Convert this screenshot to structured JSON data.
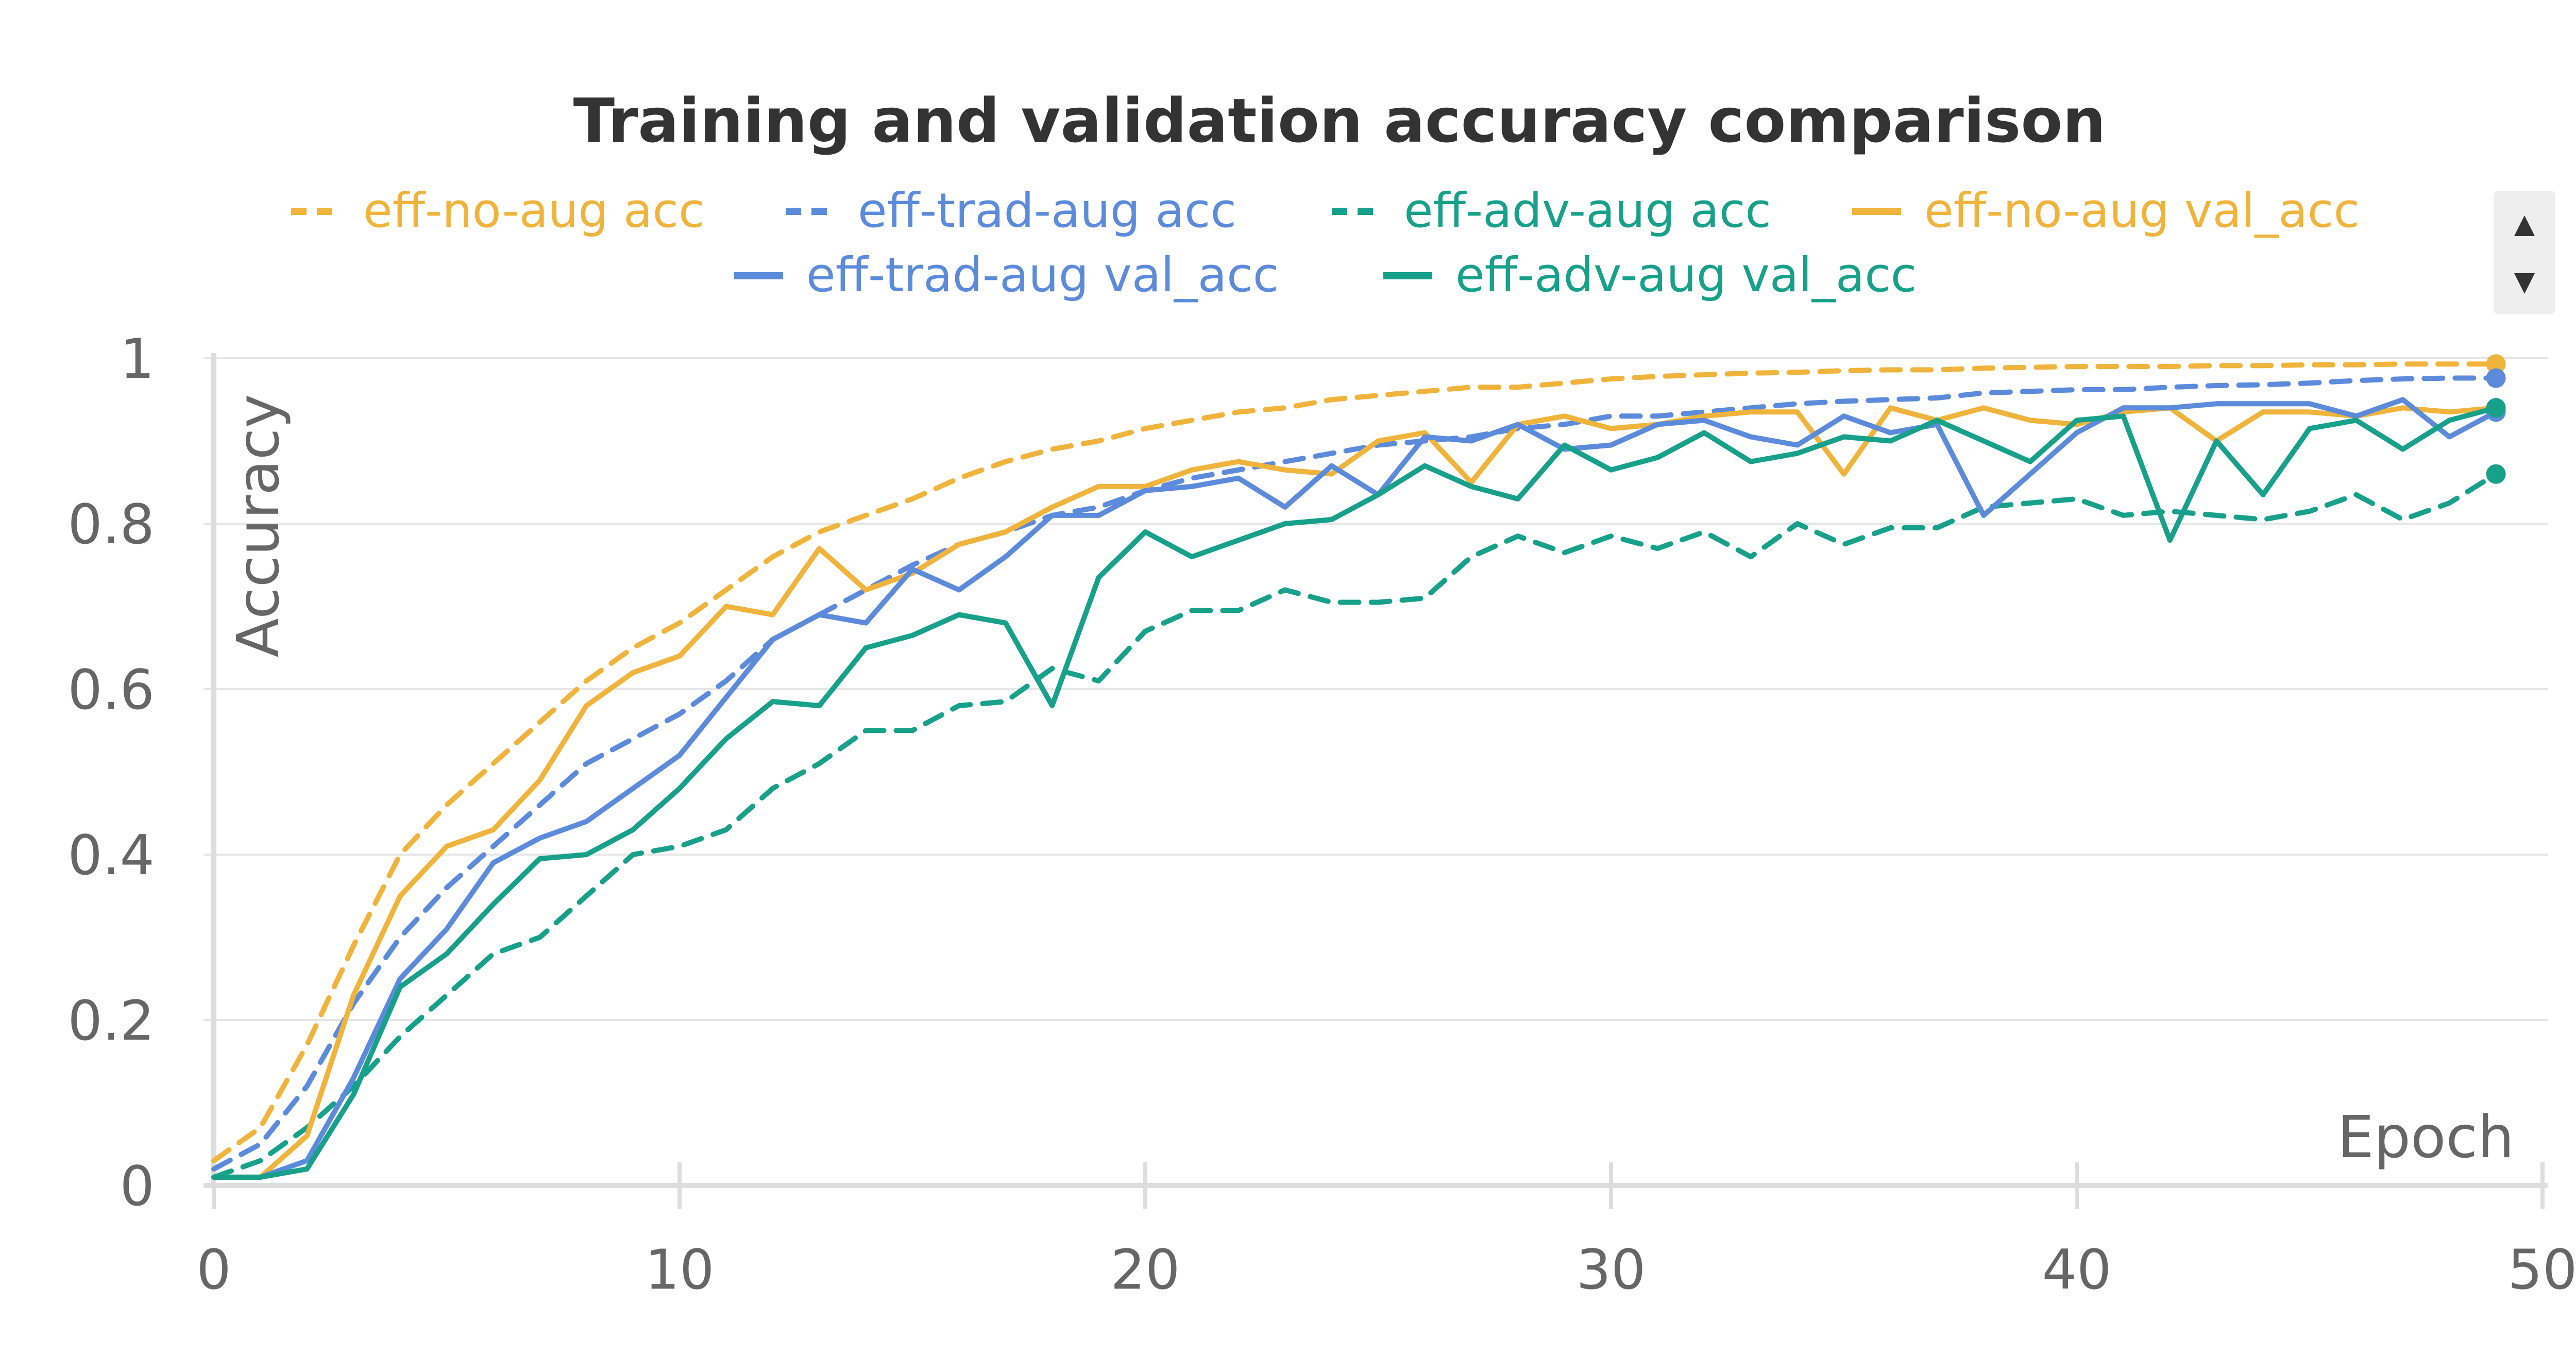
{
  "chart_data": {
    "type": "line",
    "title": "Training and validation accuracy comparison",
    "xlabel": "Epoch",
    "ylabel": "Accuracy",
    "xlim": [
      0,
      50
    ],
    "ylim": [
      0,
      1
    ],
    "x_ticks": [
      "0",
      "10",
      "20",
      "30",
      "40",
      "50"
    ],
    "y_ticks": [
      "0",
      "0.2",
      "0.4",
      "0.6",
      "0.8",
      "1"
    ],
    "grid": true,
    "legend_position": "top",
    "x": [
      0,
      1,
      2,
      3,
      4,
      5,
      6,
      7,
      8,
      9,
      10,
      11,
      12,
      13,
      14,
      15,
      16,
      17,
      18,
      19,
      20,
      21,
      22,
      23,
      24,
      25,
      26,
      27,
      28,
      29,
      30,
      31,
      32,
      33,
      34,
      35,
      36,
      37,
      38,
      39,
      40,
      41,
      42,
      43,
      44,
      45,
      46,
      47,
      48,
      49
    ],
    "series": [
      {
        "name": "eff-no-aug acc",
        "color": "#F0B43C",
        "dash": true,
        "values": [
          0.03,
          0.07,
          0.17,
          0.29,
          0.4,
          0.46,
          0.51,
          0.56,
          0.61,
          0.65,
          0.68,
          0.72,
          0.76,
          0.79,
          0.81,
          0.83,
          0.855,
          0.875,
          0.89,
          0.9,
          0.915,
          0.925,
          0.935,
          0.94,
          0.95,
          0.955,
          0.96,
          0.965,
          0.965,
          0.97,
          0.975,
          0.978,
          0.98,
          0.982,
          0.983,
          0.985,
          0.986,
          0.986,
          0.988,
          0.989,
          0.99,
          0.99,
          0.99,
          0.991,
          0.991,
          0.992,
          0.992,
          0.993,
          0.993,
          0.993
        ]
      },
      {
        "name": "eff-trad-aug acc",
        "color": "#5B8BDA",
        "dash": true,
        "values": [
          0.02,
          0.05,
          0.12,
          0.22,
          0.3,
          0.36,
          0.41,
          0.46,
          0.51,
          0.54,
          0.57,
          0.61,
          0.66,
          0.69,
          0.72,
          0.75,
          0.775,
          0.79,
          0.81,
          0.82,
          0.84,
          0.855,
          0.865,
          0.875,
          0.885,
          0.895,
          0.9,
          0.905,
          0.915,
          0.92,
          0.93,
          0.93,
          0.935,
          0.94,
          0.945,
          0.948,
          0.95,
          0.952,
          0.958,
          0.96,
          0.962,
          0.962,
          0.965,
          0.967,
          0.968,
          0.97,
          0.973,
          0.975,
          0.976,
          0.976
        ]
      },
      {
        "name": "eff-adv-aug acc",
        "color": "#17A08A",
        "dash": true,
        "values": [
          0.01,
          0.03,
          0.07,
          0.12,
          0.18,
          0.23,
          0.28,
          0.3,
          0.35,
          0.4,
          0.41,
          0.43,
          0.48,
          0.51,
          0.55,
          0.55,
          0.58,
          0.585,
          0.625,
          0.61,
          0.67,
          0.695,
          0.695,
          0.72,
          0.705,
          0.705,
          0.71,
          0.76,
          0.785,
          0.765,
          0.785,
          0.77,
          0.79,
          0.76,
          0.8,
          0.775,
          0.795,
          0.795,
          0.82,
          0.825,
          0.83,
          0.81,
          0.815,
          0.81,
          0.805,
          0.815,
          0.835,
          0.805,
          0.825,
          0.86
        ]
      },
      {
        "name": "eff-no-aug val_acc",
        "color": "#F0B43C",
        "dash": false,
        "values": [
          0.01,
          0.01,
          0.06,
          0.23,
          0.35,
          0.41,
          0.43,
          0.49,
          0.58,
          0.62,
          0.64,
          0.7,
          0.69,
          0.77,
          0.72,
          0.74,
          0.775,
          0.79,
          0.82,
          0.845,
          0.845,
          0.865,
          0.875,
          0.865,
          0.86,
          0.9,
          0.91,
          0.85,
          0.92,
          0.93,
          0.915,
          0.92,
          0.93,
          0.935,
          0.935,
          0.86,
          0.94,
          0.925,
          0.94,
          0.925,
          0.92,
          0.935,
          0.94,
          0.9,
          0.935,
          0.935,
          0.93,
          0.94,
          0.935,
          0.94
        ]
      },
      {
        "name": "eff-trad-aug val_acc",
        "color": "#5B8BDA",
        "dash": false,
        "values": [
          0.01,
          0.01,
          0.03,
          0.13,
          0.25,
          0.31,
          0.39,
          0.42,
          0.44,
          0.48,
          0.52,
          0.59,
          0.66,
          0.69,
          0.68,
          0.745,
          0.72,
          0.76,
          0.81,
          0.81,
          0.84,
          0.845,
          0.855,
          0.82,
          0.87,
          0.835,
          0.905,
          0.9,
          0.92,
          0.89,
          0.895,
          0.92,
          0.925,
          0.905,
          0.895,
          0.93,
          0.91,
          0.92,
          0.81,
          0.86,
          0.91,
          0.94,
          0.94,
          0.945,
          0.945,
          0.945,
          0.93,
          0.95,
          0.905,
          0.935
        ]
      },
      {
        "name": "eff-adv-aug val_acc",
        "color": "#17A08A",
        "dash": false,
        "values": [
          0.01,
          0.01,
          0.02,
          0.11,
          0.24,
          0.28,
          0.34,
          0.395,
          0.4,
          0.43,
          0.48,
          0.54,
          0.585,
          0.58,
          0.65,
          0.665,
          0.69,
          0.68,
          0.58,
          0.735,
          0.79,
          0.76,
          0.78,
          0.8,
          0.805,
          0.835,
          0.87,
          0.845,
          0.83,
          0.895,
          0.865,
          0.88,
          0.91,
          0.875,
          0.885,
          0.905,
          0.9,
          0.925,
          0.9,
          0.875,
          0.925,
          0.93,
          0.78,
          0.9,
          0.835,
          0.915,
          0.925,
          0.89,
          0.925,
          0.94
        ]
      }
    ]
  }
}
